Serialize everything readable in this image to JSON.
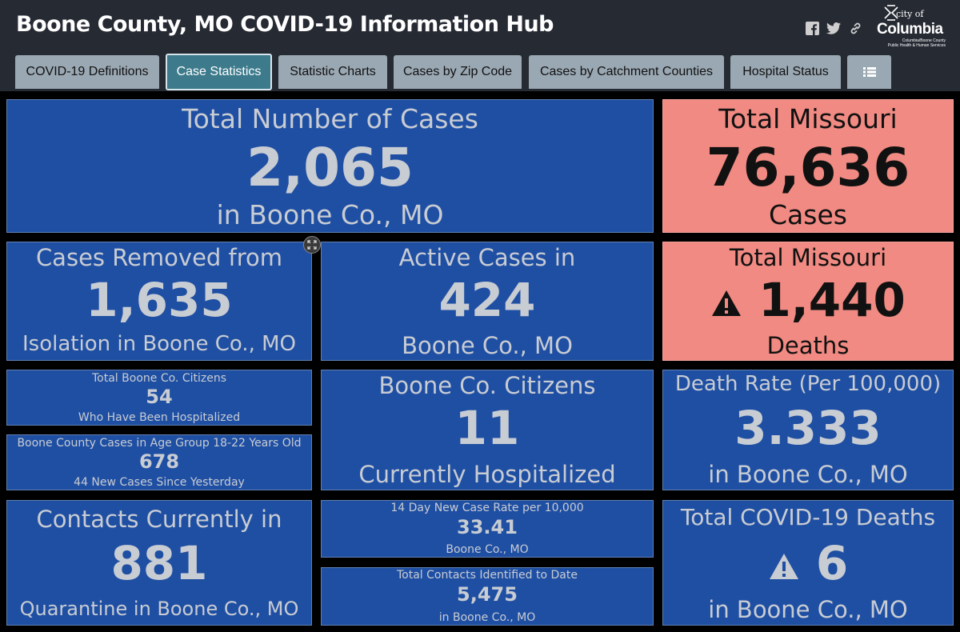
{
  "header": {
    "title": "Boone County, MO COVID-19 Information Hub",
    "logo": {
      "city": "city of",
      "name": "Columbia",
      "subtitle_line1": "Columbia/Boone County",
      "subtitle_line2": "Public Health & Human Services"
    }
  },
  "tabs": [
    {
      "label": "COVID-19 Definitions"
    },
    {
      "label": "Case Statistics",
      "active": true
    },
    {
      "label": "Statistic Charts"
    },
    {
      "label": "Cases by Zip Code"
    },
    {
      "label": "Cases by Catchment Counties"
    },
    {
      "label": "Hospital Status"
    }
  ],
  "colors": {
    "header_bg": "#262a33",
    "tile_blue": "#1f4fa3",
    "tile_red": "#f08a82",
    "tab_bg": "#9aa8b3",
    "tab_active_bg": "#3d7b8c"
  },
  "tiles": {
    "total_cases": {
      "top": "Total Number of Cases",
      "value": "2,065",
      "bottom": "in Boone Co., MO"
    },
    "total_missouri_cases": {
      "top": "Total Missouri",
      "value": "76,636",
      "bottom": "Cases"
    },
    "cases_removed": {
      "top": "Cases Removed from",
      "value": "1,635",
      "bottom": "Isolation in Boone Co., MO"
    },
    "active_cases": {
      "top": "Active Cases in",
      "value": "424",
      "bottom": "Boone Co., MO"
    },
    "total_missouri_deaths": {
      "top": "Total Missouri",
      "value": "1,440",
      "bottom": "Deaths"
    },
    "hospitalized_total": {
      "top": "Total Boone Co. Citizens",
      "value": "54",
      "bottom": "Who Have Been Hospitalized"
    },
    "age_group": {
      "top": "Boone County Cases in Age Group 18-22 Years Old",
      "value": "678",
      "bottom": "44 New Cases Since Yesterday"
    },
    "currently_hospitalized": {
      "top": "Boone Co. Citizens",
      "value": "11",
      "bottom": "Currently Hospitalized"
    },
    "death_rate": {
      "top": "Death Rate (Per 100,000)",
      "value": "3.333",
      "bottom": "in Boone Co., MO"
    },
    "contacts_quarantine": {
      "top": "Contacts Currently in",
      "value": "881",
      "bottom": "Quarantine in Boone Co., MO"
    },
    "case_rate_14day": {
      "top": "14 Day New Case Rate per 10,000",
      "value": "33.41",
      "bottom": "Boone Co., MO"
    },
    "total_contacts": {
      "top": "Total Contacts Identified to Date",
      "value": "5,475",
      "bottom": "in Boone Co., MO"
    },
    "total_deaths": {
      "top": "Total COVID-19 Deaths",
      "value": "6",
      "bottom": "in Boone Co., MO"
    }
  }
}
